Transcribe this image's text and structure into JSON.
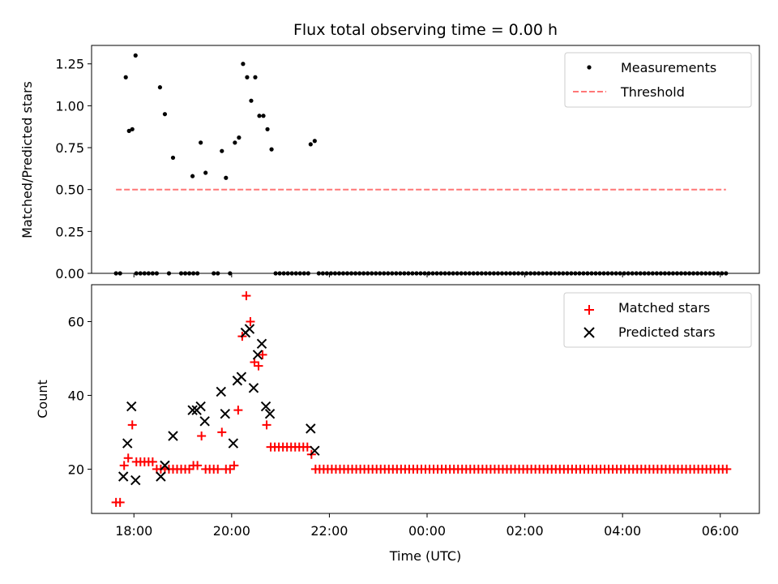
{
  "chart_data": [
    {
      "type": "scatter",
      "title": "Flux total observing time = 0.00 h",
      "xlabel": "",
      "ylabel": "Matched/Predicted stars",
      "ylim": [
        0.0,
        1.36
      ],
      "yticks": [
        0.0,
        0.25,
        0.5,
        0.75,
        1.0,
        1.25
      ],
      "ytick_labels": [
        "0.00",
        "0.25",
        "0.50",
        "0.75",
        "1.00",
        "1.25"
      ],
      "grid": false,
      "legend_position": "top-right",
      "series": [
        {
          "name": "Measurements",
          "kind": "scatter",
          "marker": "dot",
          "color": "#000000",
          "points": [
            [
              "17:50",
              1.17
            ],
            [
              "17:54",
              0.85
            ],
            [
              "17:58",
              0.86
            ],
            [
              "18:02",
              1.3
            ],
            [
              "18:32",
              1.11
            ],
            [
              "18:38",
              0.95
            ],
            [
              "18:48",
              0.69
            ],
            [
              "19:12",
              0.58
            ],
            [
              "19:22",
              0.78
            ],
            [
              "19:28",
              0.6
            ],
            [
              "19:48",
              0.73
            ],
            [
              "19:53",
              0.57
            ],
            [
              "20:04",
              0.78
            ],
            [
              "20:09",
              0.81
            ],
            [
              "20:14",
              1.25
            ],
            [
              "20:19",
              1.17
            ],
            [
              "20:24",
              1.03
            ],
            [
              "20:29",
              1.17
            ],
            [
              "20:34",
              0.94
            ],
            [
              "20:39",
              0.94
            ],
            [
              "20:44",
              0.86
            ],
            [
              "20:49",
              0.74
            ],
            [
              "21:37",
              0.77
            ],
            [
              "21:42",
              0.79
            ]
          ],
          "zero_points": {
            "times": [
              "17:38",
              "17:43",
              "18:03",
              "18:08",
              "18:13",
              "18:18",
              "18:23",
              "18:28",
              "18:43",
              "18:58",
              "19:03",
              "19:08",
              "19:13",
              "19:18",
              "19:38",
              "19:43",
              "19:58",
              "20:54",
              "20:59",
              "21:04",
              "21:09",
              "21:14",
              "21:19",
              "21:24",
              "21:29",
              "21:34",
              "21:47"
            ],
            "regular_from": "21:52",
            "regular_to": "06:07",
            "regular_step_minutes": 5,
            "value": 0.0
          }
        },
        {
          "name": "Threshold",
          "kind": "line",
          "style": "dashed",
          "color": "#ff7777",
          "x": [
            "17:38",
            "06:07"
          ],
          "values": [
            0.5,
            0.5
          ]
        }
      ]
    },
    {
      "type": "scatter",
      "title": "",
      "xlabel": "Time (UTC)",
      "ylabel": "Count",
      "ylim": [
        8,
        70
      ],
      "yticks": [
        20,
        40,
        60
      ],
      "xlim": [
        "17:08",
        "06:48"
      ],
      "xticks": [
        "18:00",
        "20:00",
        "22:00",
        "00:00",
        "02:00",
        "04:00",
        "06:00"
      ],
      "grid": false,
      "legend_position": "top-right",
      "series": [
        {
          "name": "Matched stars",
          "marker": "plus",
          "color": "#ff0000",
          "points": [
            [
              "17:38",
              11
            ],
            [
              "17:43",
              11
            ],
            [
              "17:48",
              21
            ],
            [
              "17:53",
              23
            ],
            [
              "17:58",
              32
            ],
            [
              "18:03",
              22
            ],
            [
              "18:08",
              22
            ],
            [
              "18:13",
              22
            ],
            [
              "18:18",
              22
            ],
            [
              "18:23",
              22
            ],
            [
              "18:28",
              20
            ],
            [
              "18:33",
              20
            ],
            [
              "18:38",
              20
            ],
            [
              "18:43",
              20
            ],
            [
              "18:48",
              20
            ],
            [
              "18:53",
              20
            ],
            [
              "18:58",
              20
            ],
            [
              "19:03",
              20
            ],
            [
              "19:08",
              20
            ],
            [
              "19:13",
              21
            ],
            [
              "19:18",
              21
            ],
            [
              "19:23",
              29
            ],
            [
              "19:28",
              20
            ],
            [
              "19:33",
              20
            ],
            [
              "19:38",
              20
            ],
            [
              "19:43",
              20
            ],
            [
              "19:48",
              30
            ],
            [
              "19:53",
              20
            ],
            [
              "19:58",
              20
            ],
            [
              "20:03",
              21
            ],
            [
              "20:08",
              36
            ],
            [
              "20:13",
              56
            ],
            [
              "20:18",
              67
            ],
            [
              "20:23",
              60
            ],
            [
              "20:28",
              49
            ],
            [
              "20:33",
              48
            ],
            [
              "20:38",
              51
            ],
            [
              "20:43",
              32
            ],
            [
              "20:48",
              26
            ],
            [
              "20:53",
              26
            ],
            [
              "20:58",
              26
            ],
            [
              "21:03",
              26
            ],
            [
              "21:08",
              26
            ],
            [
              "21:13",
              26
            ],
            [
              "21:18",
              26
            ],
            [
              "21:23",
              26
            ],
            [
              "21:28",
              26
            ],
            [
              "21:33",
              26
            ],
            [
              "21:38",
              24
            ],
            [
              "21:43",
              20
            ],
            [
              "21:48",
              20
            ]
          ],
          "constant_tail": {
            "from": "21:53",
            "to": "06:08",
            "step_minutes": 5,
            "value": 20
          }
        },
        {
          "name": "Predicted stars",
          "marker": "x",
          "color": "#000000",
          "points": [
            [
              "17:47",
              18
            ],
            [
              "17:52",
              27
            ],
            [
              "17:57",
              37
            ],
            [
              "18:02",
              17
            ],
            [
              "18:33",
              18
            ],
            [
              "18:38",
              21
            ],
            [
              "18:48",
              29
            ],
            [
              "19:12",
              36
            ],
            [
              "19:17",
              36
            ],
            [
              "19:22",
              37
            ],
            [
              "19:27",
              33
            ],
            [
              "19:47",
              41
            ],
            [
              "19:52",
              35
            ],
            [
              "20:02",
              27
            ],
            [
              "20:07",
              44
            ],
            [
              "20:12",
              45
            ],
            [
              "20:17",
              57
            ],
            [
              "20:22",
              58
            ],
            [
              "20:27",
              42
            ],
            [
              "20:32",
              51
            ],
            [
              "20:37",
              54
            ],
            [
              "20:42",
              37
            ],
            [
              "20:47",
              35
            ],
            [
              "21:37",
              31
            ],
            [
              "21:42",
              25
            ]
          ]
        }
      ]
    }
  ]
}
